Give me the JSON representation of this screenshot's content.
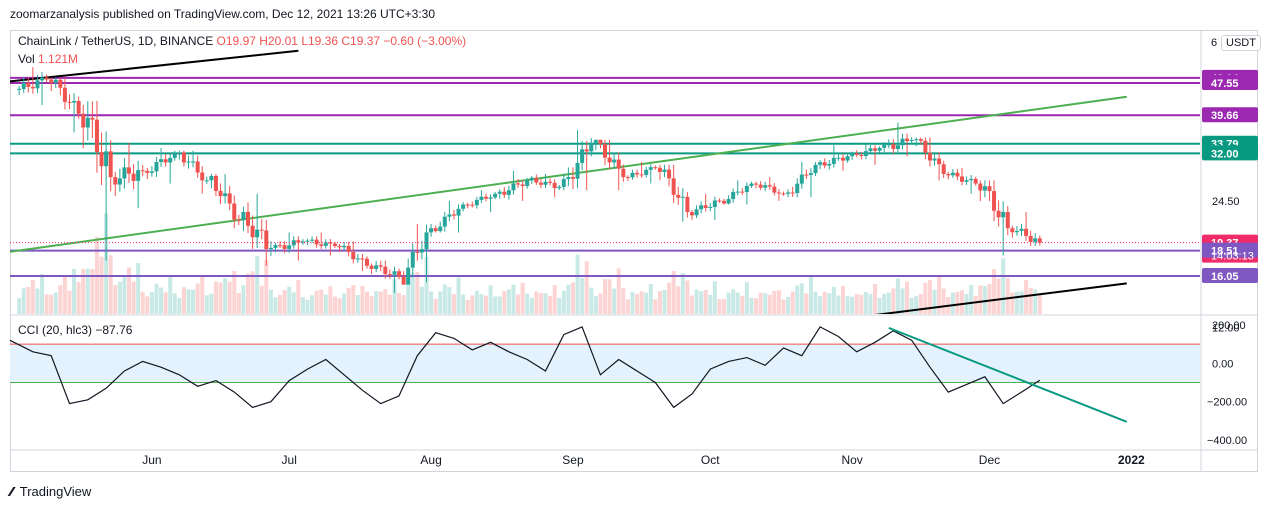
{
  "header": {
    "published": "zoomarzanalysis published on TradingView.com, Dec 12, 2021 13:26 UTC+3:30"
  },
  "legend": {
    "symbol": "ChainLink / TetherUS, 1D, BINANCE",
    "open": "O19.97",
    "high": "H20.01",
    "low": "L19.36",
    "close": "C19.37",
    "change": "−0.60 (−3.00%)"
  },
  "volume": {
    "label": "Vol",
    "value": "1.121M"
  },
  "currency": "USDT",
  "scale_mark": "6",
  "countdown": "14:03:13",
  "cci_legend": {
    "label": "CCI (20, hlc3)",
    "value": "−87.76"
  },
  "footer": {
    "brand": "TradingView"
  },
  "colors": {
    "up": "#26a69a",
    "down": "#ef5350",
    "purple": "#9c27b0",
    "teal": "#089981",
    "green": "#4caf50",
    "band": "#e3f2fd"
  },
  "chart_data": [
    {
      "type": "candlestick",
      "title": "ChainLink / TetherUS, 1D, BINANCE",
      "price_axis": {
        "min": 12,
        "max": 48.94,
        "log": true
      },
      "x_ticks": [
        "Jun",
        "Jul",
        "Aug",
        "Sep",
        "Oct",
        "Nov",
        "Dec",
        "2022"
      ],
      "y_ticks": [
        "12.00",
        "24.50"
      ],
      "price_labels": [
        {
          "value": 48.94,
          "text": "48.94",
          "color": "#9c27b0"
        },
        {
          "value": 47.55,
          "text": "47.55",
          "color": "#9c27b0"
        },
        {
          "value": 39.66,
          "text": "39.66",
          "color": "#9c27b0"
        },
        {
          "value": 33.79,
          "text": "33.79",
          "color": "#089981"
        },
        {
          "value": 32.0,
          "text": "32.00",
          "color": "#089981"
        },
        {
          "value": 19.37,
          "text": "19.37",
          "color": "#ef2b6a"
        },
        {
          "value": 18.51,
          "text": "18.51",
          "color": "#7e57c2"
        },
        {
          "value": 16.05,
          "text": "16.05",
          "color": "#7e57c2"
        }
      ],
      "horizontal_levels": [
        {
          "value": 48.94,
          "color": "#9c27b0"
        },
        {
          "value": 47.55,
          "color": "#9c27b0"
        },
        {
          "value": 39.66,
          "color": "#9c27b0"
        },
        {
          "value": 33.79,
          "color": "#089981"
        },
        {
          "value": 32.0,
          "color": "#089981"
        },
        {
          "value": 18.51,
          "color": "#7e57c2"
        },
        {
          "value": 16.05,
          "color": "#7e57c2"
        }
      ],
      "trendlines": [
        {
          "color": "#4caf50",
          "from": [
            "2021-05-01",
            18.4
          ],
          "to": [
            "2021-12-31",
            44.0
          ]
        },
        {
          "color": "#000000",
          "from": [
            "2021-10-15",
            12.0
          ],
          "to": [
            "2021-12-31",
            15.4
          ]
        },
        {
          "color": "#000000",
          "from": [
            "2021-05-01",
            48.0
          ],
          "to": [
            "2021-07-03",
            57.0
          ]
        }
      ],
      "ohlc_weekly": [
        {
          "date": "2021-05-03",
          "o": 46.0,
          "h": 52.0,
          "l": 42.0,
          "c": 48.5
        },
        {
          "date": "2021-05-10",
          "o": 48.5,
          "h": 49.0,
          "l": 36.0,
          "c": 40.0
        },
        {
          "date": "2021-05-17",
          "o": 40.0,
          "h": 43.0,
          "l": 17.5,
          "c": 28.0
        },
        {
          "date": "2021-05-24",
          "o": 28.0,
          "h": 34.0,
          "l": 23.5,
          "c": 29.0
        },
        {
          "date": "2021-05-31",
          "o": 29.0,
          "h": 33.0,
          "l": 27.0,
          "c": 32.0
        },
        {
          "date": "2021-06-07",
          "o": 32.0,
          "h": 32.5,
          "l": 25.5,
          "c": 27.5
        },
        {
          "date": "2021-06-14",
          "o": 27.5,
          "h": 28.5,
          "l": 21.0,
          "c": 22.0
        },
        {
          "date": "2021-06-21",
          "o": 22.0,
          "h": 25.5,
          "l": 17.0,
          "c": 18.8
        },
        {
          "date": "2021-06-28",
          "o": 18.8,
          "h": 20.5,
          "l": 17.5,
          "c": 19.5
        },
        {
          "date": "2021-07-05",
          "o": 19.5,
          "h": 20.5,
          "l": 18.0,
          "c": 19.0
        },
        {
          "date": "2021-07-12",
          "o": 19.0,
          "h": 19.5,
          "l": 16.5,
          "c": 17.0
        },
        {
          "date": "2021-07-19",
          "o": 17.0,
          "h": 17.5,
          "l": 14.6,
          "c": 16.0
        },
        {
          "date": "2021-07-26",
          "o": 16.0,
          "h": 21.5,
          "l": 15.5,
          "c": 21.0
        },
        {
          "date": "2021-08-02",
          "o": 21.0,
          "h": 24.5,
          "l": 20.5,
          "c": 24.0
        },
        {
          "date": "2021-08-09",
          "o": 24.0,
          "h": 26.0,
          "l": 23.0,
          "c": 25.5
        },
        {
          "date": "2021-08-16",
          "o": 25.5,
          "h": 29.0,
          "l": 24.5,
          "c": 27.5
        },
        {
          "date": "2021-08-23",
          "o": 27.5,
          "h": 28.5,
          "l": 25.0,
          "c": 26.5
        },
        {
          "date": "2021-08-30",
          "o": 26.5,
          "h": 36.5,
          "l": 26.0,
          "c": 34.0
        },
        {
          "date": "2021-09-06",
          "o": 34.0,
          "h": 34.5,
          "l": 26.0,
          "c": 28.0
        },
        {
          "date": "2021-09-13",
          "o": 28.0,
          "h": 30.5,
          "l": 27.0,
          "c": 29.5
        },
        {
          "date": "2021-09-20",
          "o": 29.5,
          "h": 30.0,
          "l": 21.8,
          "c": 23.0
        },
        {
          "date": "2021-09-27",
          "o": 23.0,
          "h": 25.5,
          "l": 22.0,
          "c": 24.5
        },
        {
          "date": "2021-10-04",
          "o": 24.5,
          "h": 27.5,
          "l": 24.0,
          "c": 27.0
        },
        {
          "date": "2021-10-11",
          "o": 27.0,
          "h": 28.0,
          "l": 24.5,
          "c": 25.5
        },
        {
          "date": "2021-10-18",
          "o": 25.5,
          "h": 30.5,
          "l": 25.0,
          "c": 30.0
        },
        {
          "date": "2021-10-25",
          "o": 30.0,
          "h": 33.5,
          "l": 29.0,
          "c": 31.5
        },
        {
          "date": "2021-11-01",
          "o": 31.5,
          "h": 34.0,
          "l": 30.0,
          "c": 33.0
        },
        {
          "date": "2021-11-08",
          "o": 33.0,
          "h": 38.0,
          "l": 31.5,
          "c": 34.5
        },
        {
          "date": "2021-11-15",
          "o": 34.5,
          "h": 35.0,
          "l": 27.5,
          "c": 28.5
        },
        {
          "date": "2021-11-22",
          "o": 28.5,
          "h": 29.5,
          "l": 25.5,
          "c": 27.0
        },
        {
          "date": "2021-11-29",
          "o": 27.0,
          "h": 27.5,
          "l": 18.0,
          "c": 21.0
        },
        {
          "date": "2021-12-06",
          "o": 21.0,
          "h": 23.0,
          "l": 19.0,
          "c": 19.37
        }
      ],
      "volume_series": {
        "label": "Vol",
        "last": "1.121M"
      }
    },
    {
      "type": "line",
      "title": "CCI (20, hlc3)",
      "y_ticks": [
        "200.00",
        "0.00",
        "−200.00",
        "−400.00"
      ],
      "ylim": [
        -430,
        220
      ],
      "bands": {
        "upper": 100,
        "lower": -100
      },
      "series": [
        {
          "x": [
            "2021-05-01",
            "2021-05-06",
            "2021-05-10",
            "2021-05-14",
            "2021-05-18",
            "2021-05-22",
            "2021-05-26",
            "2021-05-30",
            "2021-06-03",
            "2021-06-07",
            "2021-06-11",
            "2021-06-15",
            "2021-06-19",
            "2021-06-23",
            "2021-06-27",
            "2021-07-01",
            "2021-07-05",
            "2021-07-09",
            "2021-07-13",
            "2021-07-17",
            "2021-07-21",
            "2021-07-25",
            "2021-07-29",
            "2021-08-02",
            "2021-08-06",
            "2021-08-10",
            "2021-08-14",
            "2021-08-18",
            "2021-08-22",
            "2021-08-26",
            "2021-08-30",
            "2021-09-03",
            "2021-09-07",
            "2021-09-11",
            "2021-09-15",
            "2021-09-19",
            "2021-09-23",
            "2021-09-27",
            "2021-10-01",
            "2021-10-05",
            "2021-10-09",
            "2021-10-13",
            "2021-10-17",
            "2021-10-21",
            "2021-10-25",
            "2021-10-29",
            "2021-11-02",
            "2021-11-06",
            "2021-11-10",
            "2021-11-14",
            "2021-11-18",
            "2021-11-22",
            "2021-11-26",
            "2021-11-30",
            "2021-12-04",
            "2021-12-08",
            "2021-12-12"
          ],
          "y": [
            120,
            60,
            40,
            -210,
            -190,
            -130,
            -40,
            10,
            -20,
            -60,
            -120,
            -90,
            -150,
            -230,
            -200,
            -90,
            -30,
            20,
            -60,
            -140,
            -210,
            -170,
            40,
            160,
            130,
            70,
            110,
            60,
            20,
            -40,
            150,
            190,
            -60,
            20,
            -40,
            -100,
            -230,
            -160,
            -30,
            10,
            30,
            -10,
            80,
            40,
            190,
            140,
            60,
            110,
            170,
            120,
            -20,
            -150,
            -110,
            -70,
            -210,
            -150,
            -87.76
          ]
        }
      ],
      "trendlines": [
        {
          "color": "#089981",
          "from": [
            "2021-11-09",
            185
          ],
          "to": [
            "2021-12-31",
            -305
          ]
        }
      ]
    }
  ]
}
